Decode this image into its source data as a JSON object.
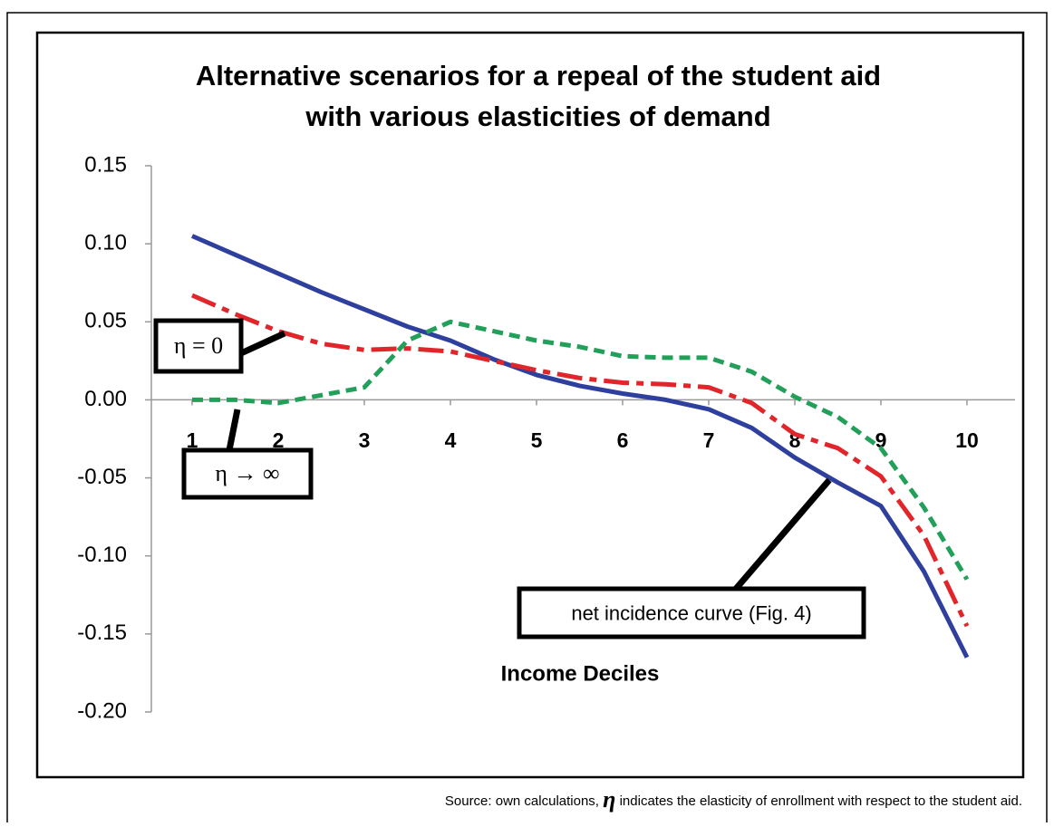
{
  "chart_data": {
    "type": "line",
    "title": [
      "Alternative scenarios for a repeal of the student aid",
      "with various elasticities of demand"
    ],
    "x_label": "Income Deciles",
    "x": [
      1,
      1.5,
      2,
      2.5,
      3,
      3.5,
      4,
      4.5,
      5,
      5.5,
      6,
      6.5,
      7,
      7.5,
      8,
      8.5,
      9,
      9.5,
      10
    ],
    "xlim": [
      0.5,
      10.5
    ],
    "xticks": [
      1,
      2,
      3,
      4,
      5,
      6,
      7,
      8,
      9,
      10
    ],
    "ylim": [
      -0.2,
      0.15
    ],
    "yticks": [
      0.15,
      {
        "value": 0.1,
        "label": "0.10"
      },
      0.05,
      {
        "value": 0,
        "label": "0.00"
      },
      -0.05,
      {
        "value": -0.1,
        "label": "-0.10"
      },
      -0.15,
      {
        "value": -0.2,
        "label": "-0.20"
      }
    ],
    "series": [
      {
        "color": "#2e3f9e",
        "style": "solid",
        "values": [
          0.105,
          0.093,
          0.081,
          0.069,
          0.058,
          0.047,
          0.038,
          0.026,
          0.016,
          0.009,
          0.004,
          0.0,
          -0.006,
          -0.018,
          -0.037,
          -0.053,
          -0.068,
          -0.11,
          -0.165
        ]
      },
      {
        "color": "#e0262b",
        "style": "dashdot",
        "values": [
          0.067,
          0.055,
          0.044,
          0.036,
          0.032,
          0.033,
          0.031,
          0.025,
          0.019,
          0.014,
          0.011,
          0.01,
          0.008,
          -0.002,
          -0.022,
          -0.031,
          -0.049,
          -0.087,
          -0.145
        ]
      },
      {
        "color": "#22a05a",
        "style": "dashed",
        "values": [
          0.0,
          0.0,
          -0.002,
          0.003,
          0.008,
          0.038,
          0.05,
          0.044,
          0.038,
          0.034,
          0.028,
          0.027,
          0.027,
          0.018,
          0.002,
          -0.011,
          -0.031,
          -0.069,
          -0.115
        ]
      }
    ],
    "annotations": [
      "η = 0",
      "η → ∞",
      "net incidence curve (Fig. 4)"
    ],
    "source": {
      "prefix": "Source: own calculations,",
      "symbol": "η",
      "suffix": "indicates the elasticity of enrollment with respect to the student aid."
    }
  }
}
